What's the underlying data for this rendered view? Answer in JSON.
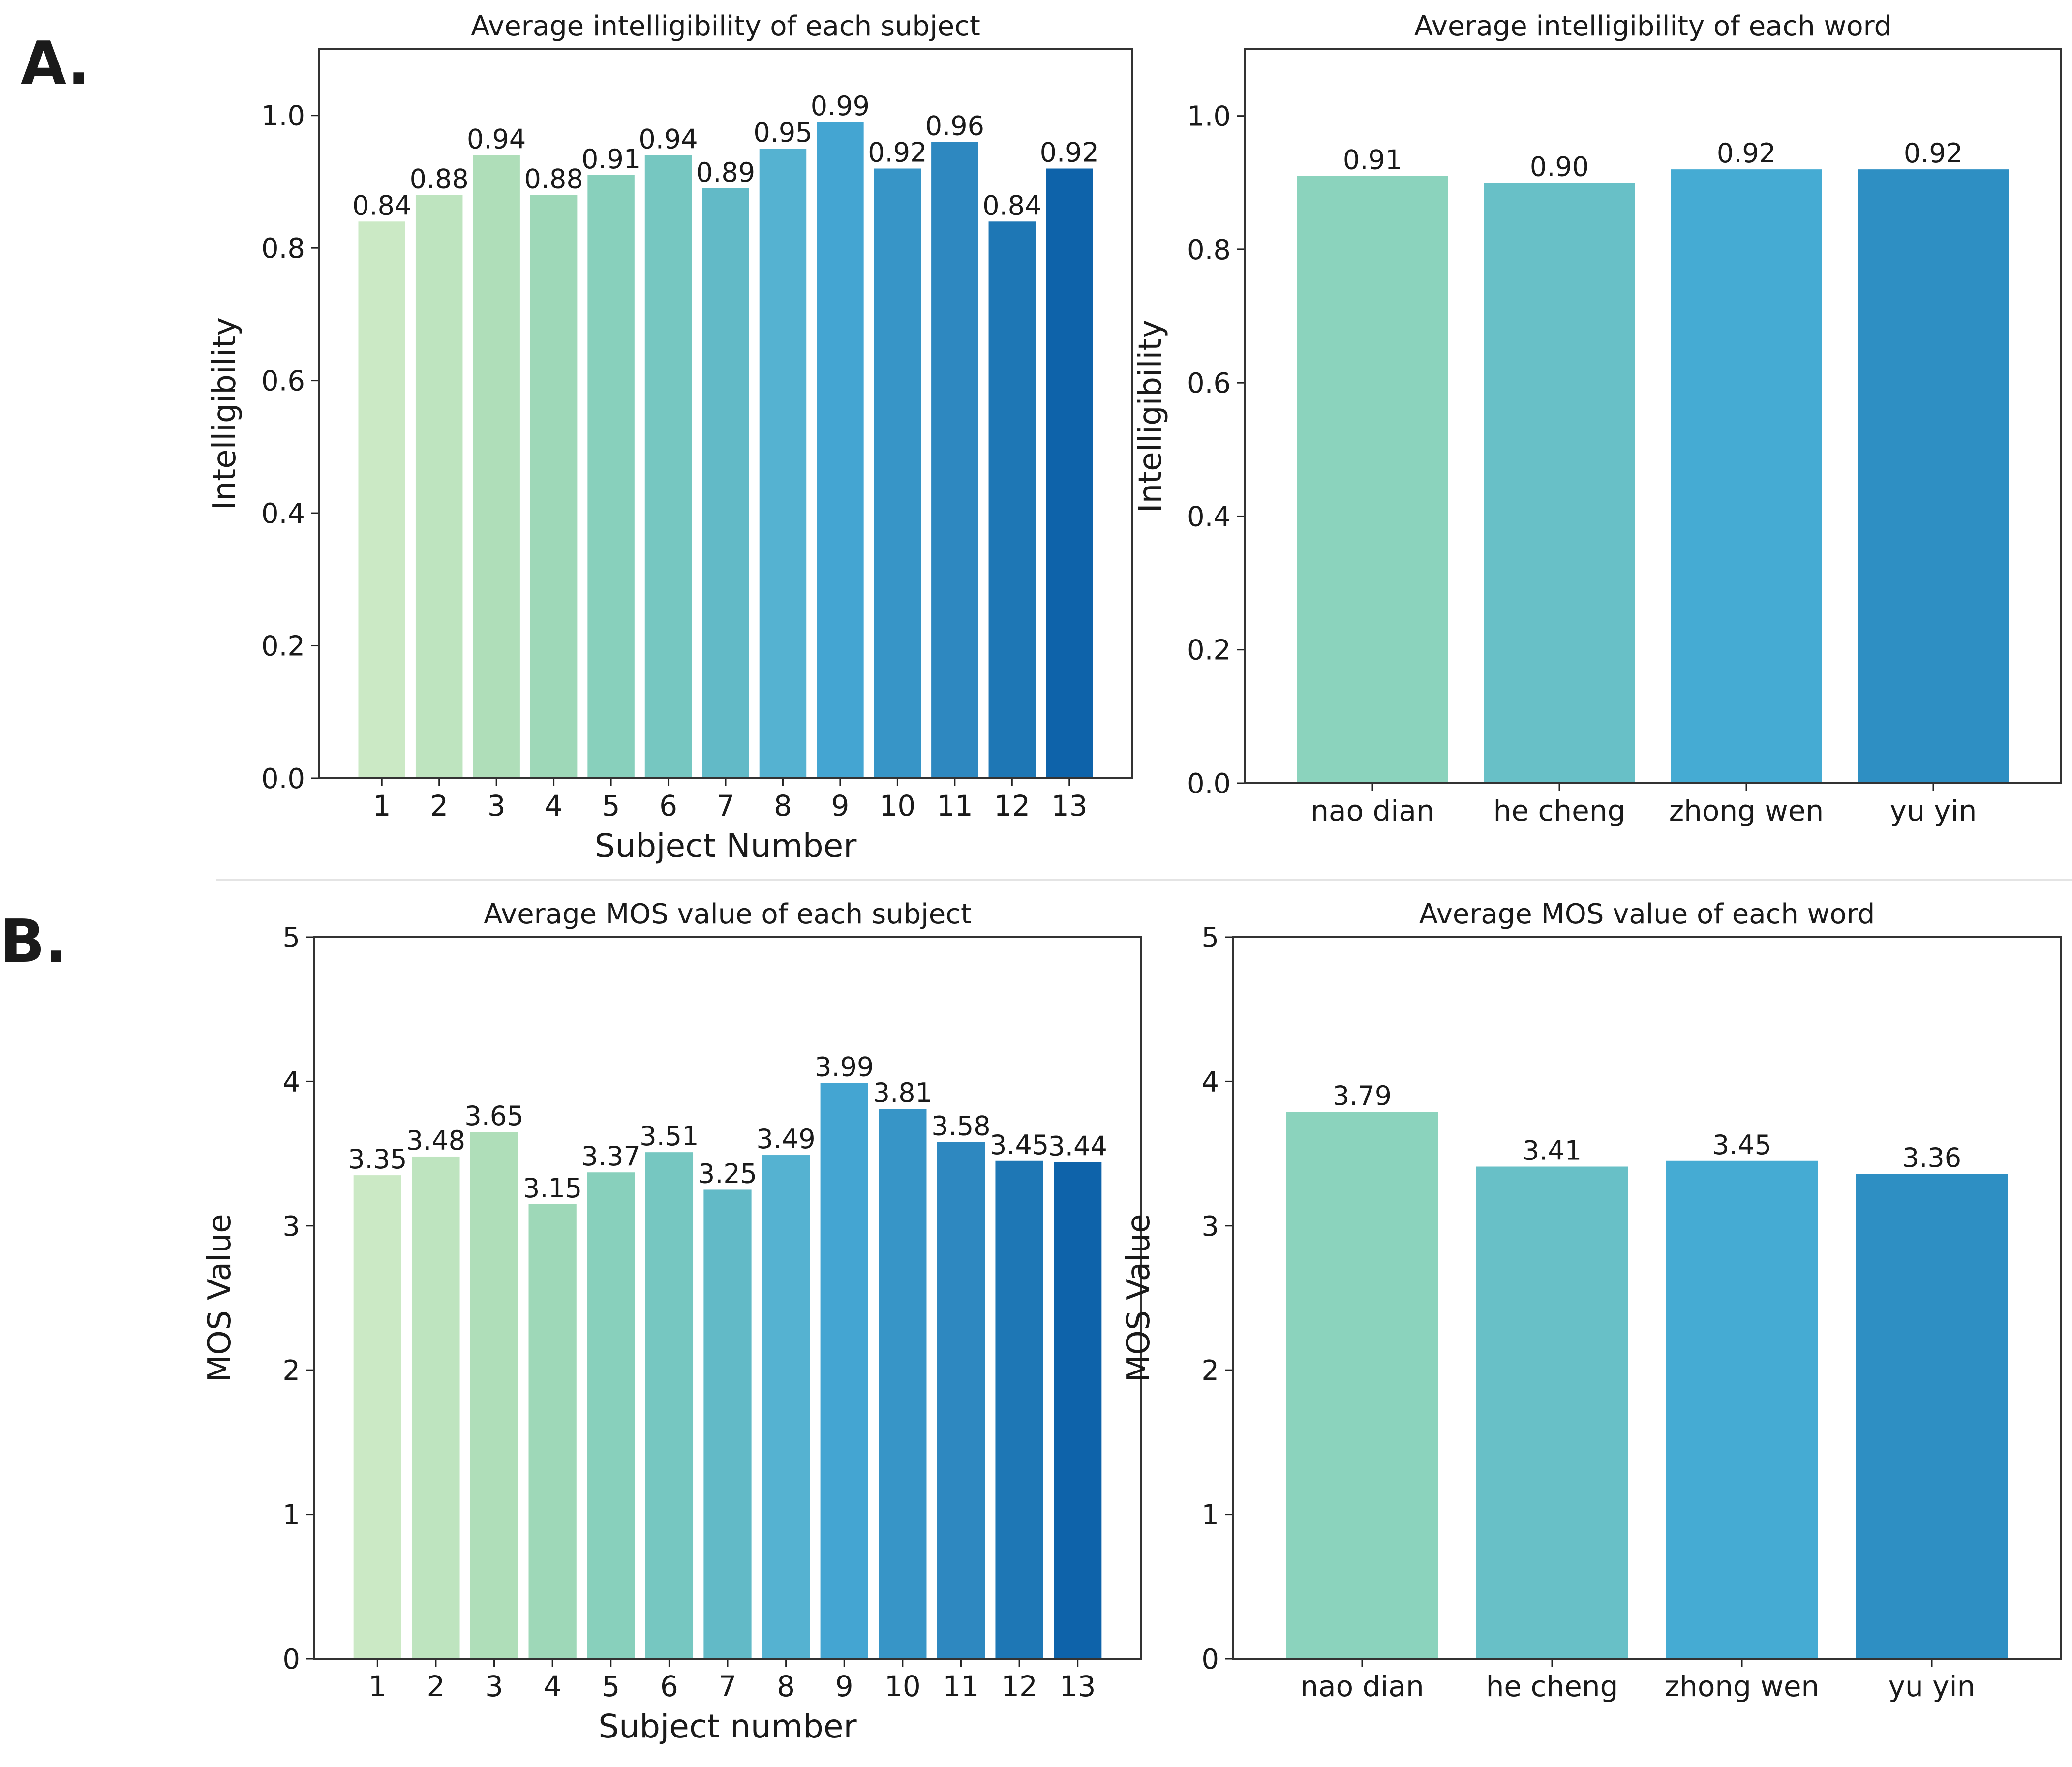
{
  "panels": [
    {
      "letter": "A."
    },
    {
      "letter": "B."
    }
  ],
  "chart_data": [
    {
      "type": "bar",
      "title": "Average intelligibility of each subject",
      "xlabel": "Subject Number",
      "ylabel": "Intelligibility",
      "ylim": [
        0,
        1.1
      ],
      "yticks": [
        "0.0",
        "0.2",
        "0.4",
        "0.6",
        "0.8",
        "1.0"
      ],
      "categories": [
        "1",
        "2",
        "3",
        "4",
        "5",
        "6",
        "7",
        "8",
        "9",
        "10",
        "11",
        "12",
        "13"
      ],
      "values": [
        0.84,
        0.88,
        0.94,
        0.88,
        0.91,
        0.94,
        0.89,
        0.95,
        0.99,
        0.92,
        0.96,
        0.84,
        0.92
      ],
      "labels": [
        "0.84",
        "0.88",
        "0.94",
        "0.88",
        "0.91",
        "0.94",
        "0.89",
        "0.95",
        "0.99",
        "0.92",
        "0.96",
        "0.84",
        "0.92"
      ],
      "colors": [
        "#cbe9c5",
        "#bee4bf",
        "#afdeb9",
        "#9ed8b8",
        "#88d0bc",
        "#76c7c1",
        "#62bac7",
        "#55b2d1",
        "#44a5d2",
        "#3795c7",
        "#2e88c0",
        "#1e77b5",
        "#0e63aa"
      ],
      "grid": false
    },
    {
      "type": "bar",
      "title": "Average intelligibility of each word",
      "xlabel": "",
      "ylabel": "Intelligibility",
      "ylim": [
        0,
        1.1
      ],
      "yticks": [
        "0.0",
        "0.2",
        "0.4",
        "0.6",
        "0.8",
        "1.0"
      ],
      "categories": [
        "nao dian",
        "he cheng",
        "zhong wen",
        "yu yin"
      ],
      "values": [
        0.91,
        0.9,
        0.92,
        0.92
      ],
      "labels": [
        "0.91",
        "0.90",
        "0.92",
        "0.92"
      ],
      "colors": [
        "#8bd3bd",
        "#68c0c7",
        "#45abd3",
        "#2e8fc3"
      ],
      "grid": false
    },
    {
      "type": "bar",
      "title": "Average MOS value of each subject",
      "xlabel": "Subject number",
      "ylabel": "MOS Value",
      "ylim": [
        0,
        5
      ],
      "yticks": [
        "0",
        "1",
        "2",
        "3",
        "4",
        "5"
      ],
      "categories": [
        "1",
        "2",
        "3",
        "4",
        "5",
        "6",
        "7",
        "8",
        "9",
        "10",
        "11",
        "12",
        "13"
      ],
      "values": [
        3.35,
        3.48,
        3.65,
        3.15,
        3.37,
        3.51,
        3.25,
        3.49,
        3.99,
        3.81,
        3.58,
        3.45,
        3.44
      ],
      "labels": [
        "3.35",
        "3.48",
        "3.65",
        "3.15",
        "3.37",
        "3.51",
        "3.25",
        "3.49",
        "3.99",
        "3.81",
        "3.58",
        "3.45",
        "3.44"
      ],
      "colors": [
        "#cbe9c5",
        "#bee4bf",
        "#afdeb9",
        "#9ed8b8",
        "#88d0bc",
        "#76c7c1",
        "#62bac7",
        "#55b2d1",
        "#44a5d2",
        "#3795c7",
        "#2e88c0",
        "#1e77b5",
        "#0e63aa"
      ],
      "grid": false
    },
    {
      "type": "bar",
      "title": "Average MOS value of each word",
      "xlabel": "",
      "ylabel": "MOS Value",
      "ylim": [
        0,
        5
      ],
      "yticks": [
        "0",
        "1",
        "2",
        "3",
        "4",
        "5"
      ],
      "categories": [
        "nao dian",
        "he cheng",
        "zhong wen",
        "yu yin"
      ],
      "values": [
        3.79,
        3.41,
        3.45,
        3.36
      ],
      "labels": [
        "3.79",
        "3.41",
        "3.45",
        "3.36"
      ],
      "colors": [
        "#8bd3bd",
        "#68c0c7",
        "#45abd3",
        "#2e8fc3"
      ],
      "grid": false
    }
  ]
}
